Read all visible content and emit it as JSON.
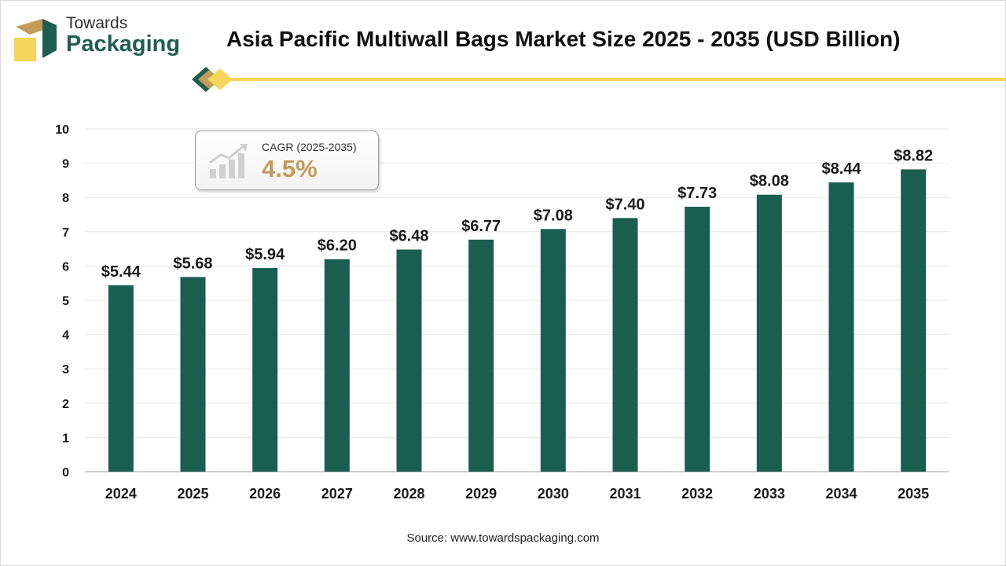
{
  "brand": {
    "name_line1": "Towards",
    "name_line2": "Packaging",
    "colors": {
      "green": "#1f5e4f",
      "tan": "#c49a5a",
      "yellow": "#f6d55c"
    }
  },
  "chart_data": {
    "type": "bar",
    "title": "Asia Pacific Multiwall Bags Market Size 2025 - 2035 (USD Billion)",
    "categories": [
      "2024",
      "2025",
      "2026",
      "2027",
      "2028",
      "2029",
      "2030",
      "2031",
      "2032",
      "2033",
      "2034",
      "2035"
    ],
    "values": [
      5.44,
      5.68,
      5.94,
      6.2,
      6.48,
      6.77,
      7.08,
      7.4,
      7.73,
      8.08,
      8.44,
      8.82
    ],
    "value_labels": [
      "$5.44",
      "$5.68",
      "$5.94",
      "$6.20",
      "$6.48",
      "$6.77",
      "$7.08",
      "$7.40",
      "$7.73",
      "$8.08",
      "$8.44",
      "$8.82"
    ],
    "ylim": [
      0,
      10
    ],
    "yticks": [
      "0",
      "1",
      "2",
      "3",
      "4",
      "5",
      "6",
      "7",
      "8",
      "9",
      "10"
    ],
    "xlabel": "",
    "ylabel": "",
    "bar_color": "#1a5e50",
    "grid": true,
    "legend": "none"
  },
  "cagr": {
    "label": "CAGR (2025-2035)",
    "value": "4.5%"
  },
  "source": "Source: www.towardspackaging.com"
}
